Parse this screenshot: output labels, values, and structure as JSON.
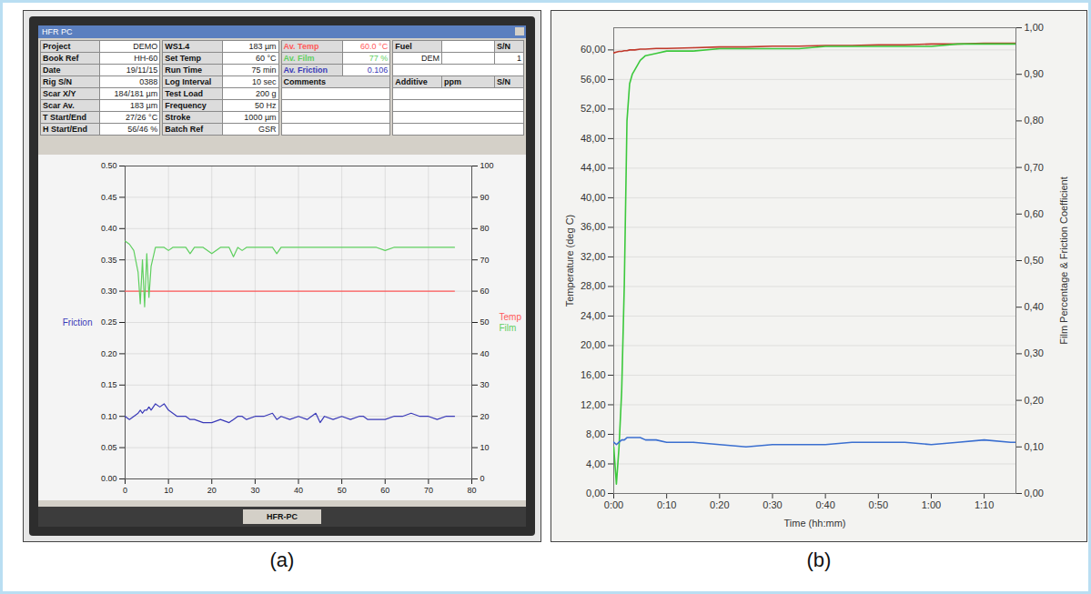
{
  "screen": {
    "window_title": "HFR PC",
    "taskbar": "HFR-PC",
    "block1": [
      [
        "Project",
        "DEMO"
      ],
      [
        "Book Ref",
        "HH-60"
      ],
      [
        "Date",
        "19/11/15"
      ],
      [
        "Rig S/N",
        "0388"
      ],
      [
        "Scar X/Y",
        "184/181 µm"
      ],
      [
        "Scar Av.",
        "183 µm"
      ],
      [
        "T Start/End",
        "27/26 °C"
      ],
      [
        "H Start/End",
        "56/46 %"
      ]
    ],
    "block2": [
      [
        "WS1.4",
        "183 µm"
      ],
      [
        "Set Temp",
        "60 °C"
      ],
      [
        "Run Time",
        "75 min"
      ],
      [
        "Log Interval",
        "10 sec"
      ],
      [
        "Test Load",
        "200 g"
      ],
      [
        "Frequency",
        "50 Hz"
      ],
      [
        "Stroke",
        "1000 µm"
      ],
      [
        "Batch Ref",
        "GSR"
      ]
    ],
    "results": [
      [
        "Av. Temp",
        "60.0 °C"
      ],
      [
        "Av. Film",
        "77 %"
      ],
      [
        "Av. Friction",
        "0.106"
      ]
    ],
    "comments": "Comments",
    "fuel": {
      "label": "Fuel",
      "value": "DEM",
      "sn_label": "S/N",
      "sn_value": "1"
    },
    "additive": {
      "label": "Additive",
      "unit": "ppm",
      "sn_label": "S/N"
    }
  },
  "chart_data": [
    {
      "type": "line",
      "caption": "(a)",
      "x": [
        0,
        1,
        2,
        3,
        3.5,
        4,
        4.5,
        5,
        5.5,
        6,
        7,
        8,
        9,
        10,
        11,
        12,
        14,
        15,
        16,
        18,
        20,
        22,
        24,
        25,
        26,
        27,
        28,
        30,
        32,
        34,
        35,
        36,
        38,
        40,
        42,
        44,
        45,
        46,
        48,
        50,
        52,
        54,
        55,
        56,
        58,
        60,
        62,
        64,
        66,
        68,
        70,
        72,
        74,
        76
      ],
      "xlim": [
        0,
        80
      ],
      "xticks": [
        0,
        10,
        20,
        30,
        40,
        50,
        60,
        70,
        80
      ],
      "ylim": [
        0,
        0.5
      ],
      "yticks": [
        {
          "value": 0,
          "label": "0.00"
        },
        {
          "value": 0.05,
          "label": "0.05"
        },
        {
          "value": 0.1,
          "label": "0.10"
        },
        {
          "value": 0.15,
          "label": "0.15"
        },
        {
          "value": 0.2,
          "label": "0.20"
        },
        {
          "value": 0.25,
          "label": "0.25"
        },
        {
          "value": 0.3,
          "label": "0.30"
        },
        {
          "value": 0.35,
          "label": "0.35"
        },
        {
          "value": 0.4,
          "label": "0.40"
        },
        {
          "value": 0.45,
          "label": "0.45"
        },
        {
          "value": 0.5,
          "label": "0.50"
        }
      ],
      "y2lim": [
        0,
        100
      ],
      "y2ticks": [
        0,
        10,
        20,
        30,
        40,
        50,
        60,
        70,
        80,
        90,
        100
      ],
      "grid": true,
      "legend": "sides",
      "series": [
        {
          "name": "Friction",
          "color": "#3a3ab8",
          "values": [
            0.1,
            0.095,
            0.1,
            0.105,
            0.11,
            0.105,
            0.11,
            0.11,
            0.115,
            0.11,
            0.12,
            0.115,
            0.12,
            0.11,
            0.105,
            0.1,
            0.1,
            0.095,
            0.095,
            0.09,
            0.09,
            0.095,
            0.09,
            0.095,
            0.1,
            0.1,
            0.095,
            0.1,
            0.1,
            0.105,
            0.095,
            0.1,
            0.095,
            0.1,
            0.095,
            0.105,
            0.09,
            0.1,
            0.095,
            0.1,
            0.095,
            0.1,
            0.1,
            0.095,
            0.095,
            0.095,
            0.1,
            0.1,
            0.105,
            0.1,
            0.1,
            0.095,
            0.1,
            0.1
          ]
        },
        {
          "name": "Temp",
          "color": "#ff5a5a",
          "axis": "y2",
          "values": [
            60,
            60,
            60,
            60,
            60,
            60,
            60,
            60,
            60,
            60,
            60,
            60,
            60,
            60,
            60,
            60,
            60,
            60,
            60,
            60,
            60,
            60,
            60,
            60,
            60,
            60,
            60,
            60,
            60,
            60,
            60,
            60,
            60,
            60,
            60,
            60,
            60,
            60,
            60,
            60,
            60,
            60,
            60,
            60,
            60,
            60,
            60,
            60,
            60,
            60,
            60,
            60,
            60,
            60
          ]
        },
        {
          "name": "Film",
          "color": "#5fcf5f",
          "axis": "y2",
          "values": [
            76,
            75,
            73,
            66,
            56,
            70,
            55,
            72,
            58,
            68,
            74,
            74,
            74,
            73,
            74,
            74,
            74,
            72,
            74,
            74,
            72,
            74,
            74,
            71,
            74,
            73,
            74,
            74,
            74,
            74,
            72,
            74,
            74,
            74,
            74,
            74,
            74,
            74,
            74,
            74,
            74,
            74,
            74,
            74,
            74,
            73,
            74,
            74,
            74,
            74,
            74,
            74,
            74,
            74
          ]
        }
      ]
    },
    {
      "type": "line",
      "caption": "(b)",
      "x_label": "Time (hh:mm)",
      "y_label": "Temperature (deg C)",
      "y2_label": "Film Percentage & Friction Coefficient",
      "x": [
        0,
        0.5,
        1,
        1.5,
        2,
        2.5,
        3,
        3.5,
        4,
        5,
        6,
        8,
        10,
        15,
        20,
        25,
        30,
        35,
        40,
        45,
        50,
        55,
        60,
        65,
        70,
        75,
        76
      ],
      "xlim": [
        0,
        76
      ],
      "xticks": [
        {
          "value": 0,
          "label": "0:00"
        },
        {
          "value": 10,
          "label": "0:10"
        },
        {
          "value": 20,
          "label": "0:20"
        },
        {
          "value": 30,
          "label": "0:30"
        },
        {
          "value": 40,
          "label": "0:40"
        },
        {
          "value": 50,
          "label": "0:50"
        },
        {
          "value": 60,
          "label": "1:00"
        },
        {
          "value": 70,
          "label": "1:10"
        }
      ],
      "ylim": [
        0,
        63
      ],
      "yticks": [
        {
          "value": 0,
          "label": "0,00"
        },
        {
          "value": 4,
          "label": "4,00"
        },
        {
          "value": 8,
          "label": "8,00"
        },
        {
          "value": 12,
          "label": "12,00"
        },
        {
          "value": 16,
          "label": "16,00"
        },
        {
          "value": 20,
          "label": "20,00"
        },
        {
          "value": 24,
          "label": "24,00"
        },
        {
          "value": 28,
          "label": "28,00"
        },
        {
          "value": 32,
          "label": "32,00"
        },
        {
          "value": 36,
          "label": "36,00"
        },
        {
          "value": 40,
          "label": "40,00"
        },
        {
          "value": 44,
          "label": "44,00"
        },
        {
          "value": 48,
          "label": "48,00"
        },
        {
          "value": 52,
          "label": "52,00"
        },
        {
          "value": 56,
          "label": "56,00"
        },
        {
          "value": 60,
          "label": "60,00"
        }
      ],
      "y2lim": [
        0,
        1
      ],
      "y2ticks": [
        {
          "value": 0,
          "label": "0,00"
        },
        {
          "value": 0.1,
          "label": "0,10"
        },
        {
          "value": 0.2,
          "label": "0,20"
        },
        {
          "value": 0.3,
          "label": "0,30"
        },
        {
          "value": 0.4,
          "label": "0,40"
        },
        {
          "value": 0.5,
          "label": "0,50"
        },
        {
          "value": 0.6,
          "label": "0,60"
        },
        {
          "value": 0.7,
          "label": "0,70"
        },
        {
          "value": 0.8,
          "label": "0,80"
        },
        {
          "value": 0.9,
          "label": "0,90"
        },
        {
          "value": 1,
          "label": "1,00"
        }
      ],
      "grid": "y",
      "series": [
        {
          "color": "#c0392b",
          "values": [
            59.6,
            59.7,
            59.8,
            59.8,
            59.9,
            59.9,
            60.0,
            60.0,
            60.0,
            60.1,
            60.1,
            60.2,
            60.2,
            60.3,
            60.4,
            60.4,
            60.5,
            60.5,
            60.6,
            60.6,
            60.7,
            60.7,
            60.8,
            60.8,
            60.9,
            60.9,
            60.9
          ]
        },
        {
          "color": "#3cc83c",
          "axis": "y2",
          "values": [
            0.1,
            0.02,
            0.1,
            0.22,
            0.45,
            0.8,
            0.88,
            0.9,
            0.91,
            0.93,
            0.94,
            0.945,
            0.95,
            0.95,
            0.955,
            0.955,
            0.955,
            0.955,
            0.96,
            0.96,
            0.96,
            0.96,
            0.96,
            0.965,
            0.965,
            0.965,
            0.965
          ]
        },
        {
          "color": "#3b6fd0",
          "axis": "y2",
          "values": [
            0.11,
            0.105,
            0.11,
            0.115,
            0.115,
            0.12,
            0.12,
            0.12,
            0.12,
            0.12,
            0.115,
            0.115,
            0.11,
            0.11,
            0.105,
            0.1,
            0.105,
            0.105,
            0.105,
            0.11,
            0.11,
            0.11,
            0.105,
            0.11,
            0.115,
            0.11,
            0.11
          ]
        }
      ]
    }
  ]
}
